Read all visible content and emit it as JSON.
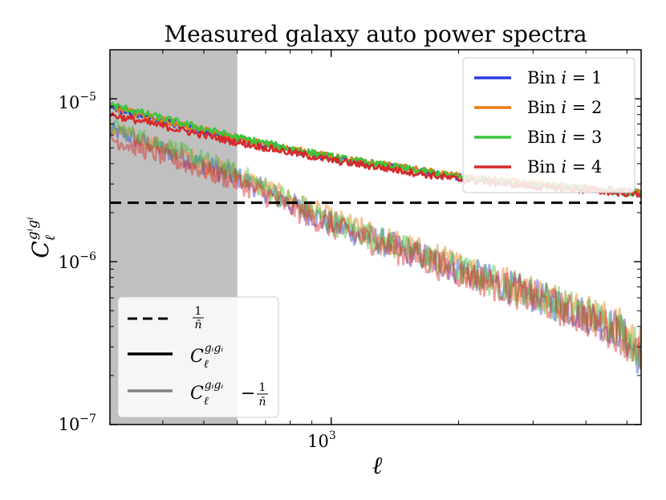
{
  "chart_data": {
    "type": "line",
    "title": "Measured galaxy auto power spectra",
    "xlabel": "ℓ",
    "ylabel_main": "C",
    "ylabel_sub": "ℓ",
    "ylabel_sup": "gⁱgⁱ",
    "x_scale": "log",
    "y_scale": "log",
    "xlim": [
      300,
      5400
    ],
    "ylim": [
      1e-07,
      2e-05
    ],
    "x_ticks": [
      {
        "value": 1000,
        "label_base": "10",
        "label_exp": "3"
      }
    ],
    "y_ticks": [
      {
        "value": 1e-05,
        "label_base": "10",
        "label_exp": "−5"
      },
      {
        "value": 1e-06,
        "label_base": "10",
        "label_exp": "−6"
      },
      {
        "value": 1e-07,
        "label_base": "10",
        "label_exp": "−7"
      }
    ],
    "shaded_region": {
      "x_from": 300,
      "x_to": 600,
      "color": "#c0c0c0"
    },
    "shot_noise_level": 2.3e-06,
    "series": [
      {
        "name": "Bin i = 1",
        "label_text": "Bin",
        "label_var": "i",
        "label_eq": "= 1",
        "color": "#2a3de0",
        "total": [
          [
            300,
            8.8e-06
          ],
          [
            600,
            5.6e-06
          ],
          [
            1000,
            4.3e-06
          ],
          [
            2000,
            3.3e-06
          ],
          [
            3000,
            2.95e-06
          ],
          [
            4000,
            2.8e-06
          ],
          [
            5400,
            2.65e-06
          ]
        ],
        "minus_noise": [
          [
            300,
            6.5e-06
          ],
          [
            600,
            3.3e-06
          ],
          [
            1000,
            1.7e-06
          ],
          [
            2000,
            9e-07
          ],
          [
            3000,
            6.2e-07
          ],
          [
            4000,
            4.7e-07
          ],
          [
            4800,
            3.8e-07
          ],
          [
            5400,
            2.5e-07
          ]
        ]
      },
      {
        "name": "Bin i = 2",
        "label_text": "Bin",
        "label_var": "i",
        "label_eq": "= 2",
        "color": "#e87a14",
        "total": [
          [
            300,
            8.9e-06
          ],
          [
            600,
            5.7e-06
          ],
          [
            1000,
            4.4e-06
          ],
          [
            2000,
            3.35e-06
          ],
          [
            3000,
            3e-06
          ],
          [
            4000,
            2.82e-06
          ],
          [
            5400,
            2.68e-06
          ]
        ],
        "minus_noise": [
          [
            300,
            6.6e-06
          ],
          [
            600,
            3.4e-06
          ],
          [
            1000,
            1.8e-06
          ],
          [
            2000,
            9.4e-07
          ],
          [
            3000,
            6.6e-07
          ],
          [
            4000,
            5e-07
          ],
          [
            4800,
            4e-07
          ],
          [
            5400,
            3e-07
          ]
        ]
      },
      {
        "name": "Bin i = 3",
        "label_text": "Bin",
        "label_var": "i",
        "label_eq": "= 3",
        "color": "#3cc43c",
        "total": [
          [
            300,
            9.2e-06
          ],
          [
            600,
            5.8e-06
          ],
          [
            1000,
            4.4e-06
          ],
          [
            2000,
            3.3e-06
          ],
          [
            3000,
            2.95e-06
          ],
          [
            4000,
            2.78e-06
          ],
          [
            5400,
            2.62e-06
          ]
        ],
        "minus_noise": [
          [
            300,
            6.9e-06
          ],
          [
            600,
            3.5e-06
          ],
          [
            1000,
            1.75e-06
          ],
          [
            2000,
            9e-07
          ],
          [
            3000,
            6.3e-07
          ],
          [
            4000,
            4.8e-07
          ],
          [
            4800,
            3.9e-07
          ],
          [
            5400,
            2.8e-07
          ]
        ]
      },
      {
        "name": "Bin i = 4",
        "label_text": "Bin",
        "label_var": "i",
        "label_eq": "= 4",
        "color": "#d62a2a",
        "total": [
          [
            300,
            8e-06
          ],
          [
            600,
            5.4e-06
          ],
          [
            1000,
            4.2e-06
          ],
          [
            2000,
            3.2e-06
          ],
          [
            3000,
            2.9e-06
          ],
          [
            4000,
            2.75e-06
          ],
          [
            5400,
            2.6e-06
          ]
        ],
        "minus_noise": [
          [
            300,
            5.7e-06
          ],
          [
            600,
            3.1e-06
          ],
          [
            1000,
            1.65e-06
          ],
          [
            2000,
            8.6e-07
          ],
          [
            3000,
            6e-07
          ],
          [
            4000,
            4.5e-07
          ],
          [
            4800,
            3.6e-07
          ],
          [
            5400,
            2.6e-07
          ]
        ]
      }
    ],
    "legend_bins_position": "top-right",
    "legend_styles_position": "bottom-left",
    "legend_styles": [
      {
        "name": "shot noise",
        "style": "dashed",
        "color": "#000000",
        "label_num": "1",
        "label_den": "n̄"
      },
      {
        "name": "total",
        "style": "solid",
        "color": "#000000",
        "label_main": "C",
        "label_sub": "ℓ",
        "label_sup": "gᵢgᵢ"
      },
      {
        "name": "total minus noise",
        "style": "solid",
        "color": "#808080",
        "label_main": "C",
        "label_sub": "ℓ",
        "label_sup": "gᵢgᵢ",
        "label_minus": "−",
        "label_num": "1",
        "label_den": "n̄"
      }
    ]
  }
}
